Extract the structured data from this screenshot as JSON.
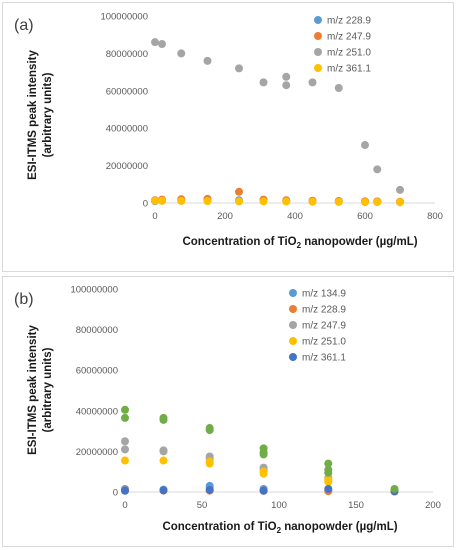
{
  "chart_data": [
    {
      "type": "scatter",
      "panel_label": "(a)",
      "xlabel": "Concentration of TiO",
      "xlabel_sub": "2",
      "xlabel_tail": " nanopowder  (µg/mL)",
      "ylabel_line1": "ESI-ITMS peak intensity",
      "ylabel_line2": "(arbitrary units)",
      "xlim": [
        0,
        800
      ],
      "ylim": [
        0,
        100000000
      ],
      "x_ticks": [
        0,
        200,
        400,
        600,
        800
      ],
      "y_ticks": [
        0,
        20000000,
        40000000,
        60000000,
        80000000,
        100000000
      ],
      "x_tick_labels": [
        "0",
        "200",
        "400",
        "600",
        "800"
      ],
      "y_tick_labels": [
        "0",
        "20000000",
        "40000000",
        "60000000",
        "80000000",
        "100000000"
      ],
      "grid": false,
      "legend_position": "top-right",
      "series": [
        {
          "name": "m/z 228.9",
          "color": "#5B9BD5",
          "points": [
            [
              0,
              1000000
            ],
            [
              20,
              1200000
            ],
            [
              75,
              1500000
            ],
            [
              150,
              1500000
            ],
            [
              240,
              1500000
            ],
            [
              310,
              1500000
            ],
            [
              375,
              1200000
            ],
            [
              450,
              1000000
            ],
            [
              525,
              1000000
            ],
            [
              600,
              800000
            ],
            [
              635,
              800000
            ],
            [
              700,
              600000
            ]
          ]
        },
        {
          "name": "m/z 247.9",
          "color": "#ED7D31",
          "points": [
            [
              0,
              1500000
            ],
            [
              20,
              1800000
            ],
            [
              75,
              2000000
            ],
            [
              150,
              2200000
            ],
            [
              240,
              6000000
            ],
            [
              310,
              1800000
            ],
            [
              375,
              1500000
            ],
            [
              450,
              1200000
            ],
            [
              525,
              1000000
            ],
            [
              600,
              900000
            ],
            [
              635,
              800000
            ],
            [
              700,
              700000
            ]
          ]
        },
        {
          "name": "m/z 251.0",
          "color": "#A5A5A5",
          "points": [
            [
              0,
              86000000
            ],
            [
              20,
              85000000
            ],
            [
              75,
              80000000
            ],
            [
              150,
              76000000
            ],
            [
              240,
              72000000
            ],
            [
              310,
              64500000
            ],
            [
              375,
              67500000
            ],
            [
              375,
              63000000
            ],
            [
              450,
              64500000
            ],
            [
              525,
              61500000
            ],
            [
              600,
              31000000
            ],
            [
              635,
              18000000
            ],
            [
              700,
              7000000
            ]
          ]
        },
        {
          "name": "m/z 361.1",
          "color": "#FFC000",
          "points": [
            [
              0,
              1200000
            ],
            [
              20,
              1200000
            ],
            [
              75,
              1100000
            ],
            [
              150,
              1000000
            ],
            [
              240,
              900000
            ],
            [
              310,
              900000
            ],
            [
              375,
              800000
            ],
            [
              450,
              700000
            ],
            [
              525,
              600000
            ],
            [
              600,
              500000
            ],
            [
              635,
              500000
            ],
            [
              700,
              400000
            ]
          ]
        }
      ]
    },
    {
      "type": "scatter",
      "panel_label": "(b)",
      "xlabel": "Concentration of TiO",
      "xlabel_sub": "2",
      "xlabel_tail": " nanopowder  (µg/mL)",
      "ylabel_line1": "ESI-ITMS peak intensity",
      "ylabel_line2": "(arbitrary units)",
      "xlim": [
        0,
        200
      ],
      "ylim": [
        0,
        100000000
      ],
      "x_ticks": [
        0,
        50,
        100,
        150,
        200
      ],
      "y_ticks": [
        0,
        20000000,
        40000000,
        60000000,
        80000000,
        100000000
      ],
      "x_tick_labels": [
        "0",
        "50",
        "100",
        "150",
        "200"
      ],
      "y_tick_labels": [
        "0",
        "20000000",
        "40000000",
        "60000000",
        "80000000",
        "100000000"
      ],
      "grid": false,
      "legend_position": "top-right",
      "series": [
        {
          "name": "m/z 134.9",
          "color": "#5B9BD5",
          "points": [
            [
              0,
              1500000
            ],
            [
              25,
              1200000
            ],
            [
              55,
              3000000
            ],
            [
              55,
              2000000
            ],
            [
              90,
              1500000
            ],
            [
              132,
              900000
            ],
            [
              175,
              500000
            ]
          ]
        },
        {
          "name": "m/z 228.9",
          "color": "#ED7D31",
          "points": [
            [
              0,
              800000
            ],
            [
              25,
              700000
            ],
            [
              55,
              700000
            ],
            [
              90,
              600000
            ],
            [
              132,
              400000
            ],
            [
              175,
              300000
            ]
          ]
        },
        {
          "name": "m/z 247.9",
          "color": "#A5A5A5",
          "points": [
            [
              0,
              25000000
            ],
            [
              0,
              21000000
            ],
            [
              25,
              20500000
            ],
            [
              25,
              20000000
            ],
            [
              55,
              17500000
            ],
            [
              55,
              16500000
            ],
            [
              90,
              12000000
            ],
            [
              90,
              11000000
            ],
            [
              132,
              7000000
            ],
            [
              175,
              500000
            ]
          ]
        },
        {
          "name": "m/z 251.0",
          "color": "#FFC000",
          "points": [
            [
              0,
              15500000
            ],
            [
              25,
              15500000
            ],
            [
              55,
              15000000
            ],
            [
              55,
              14000000
            ],
            [
              90,
              10000000
            ],
            [
              90,
              9000000
            ],
            [
              132,
              6000000
            ],
            [
              132,
              5000000
            ],
            [
              175,
              400000
            ]
          ]
        },
        {
          "name": "m/z 361.1",
          "color": "#4472C4",
          "points": [
            [
              0,
              600000
            ],
            [
              25,
              800000
            ],
            [
              55,
              1000000
            ],
            [
              90,
              600000
            ],
            [
              132,
              1500000
            ],
            [
              175,
              300000
            ]
          ]
        },
        {
          "name": "",
          "color": "#70AD47",
          "points": [
            [
              0,
              40500000
            ],
            [
              0,
              36500000
            ],
            [
              25,
              36500000
            ],
            [
              25,
              35500000
            ],
            [
              55,
              31500000
            ],
            [
              55,
              30500000
            ],
            [
              90,
              21500000
            ],
            [
              90,
              19500000
            ],
            [
              90,
              18500000
            ],
            [
              132,
              14000000
            ],
            [
              132,
              11000000
            ],
            [
              132,
              9500000
            ],
            [
              175,
              1500000
            ]
          ]
        }
      ]
    }
  ]
}
